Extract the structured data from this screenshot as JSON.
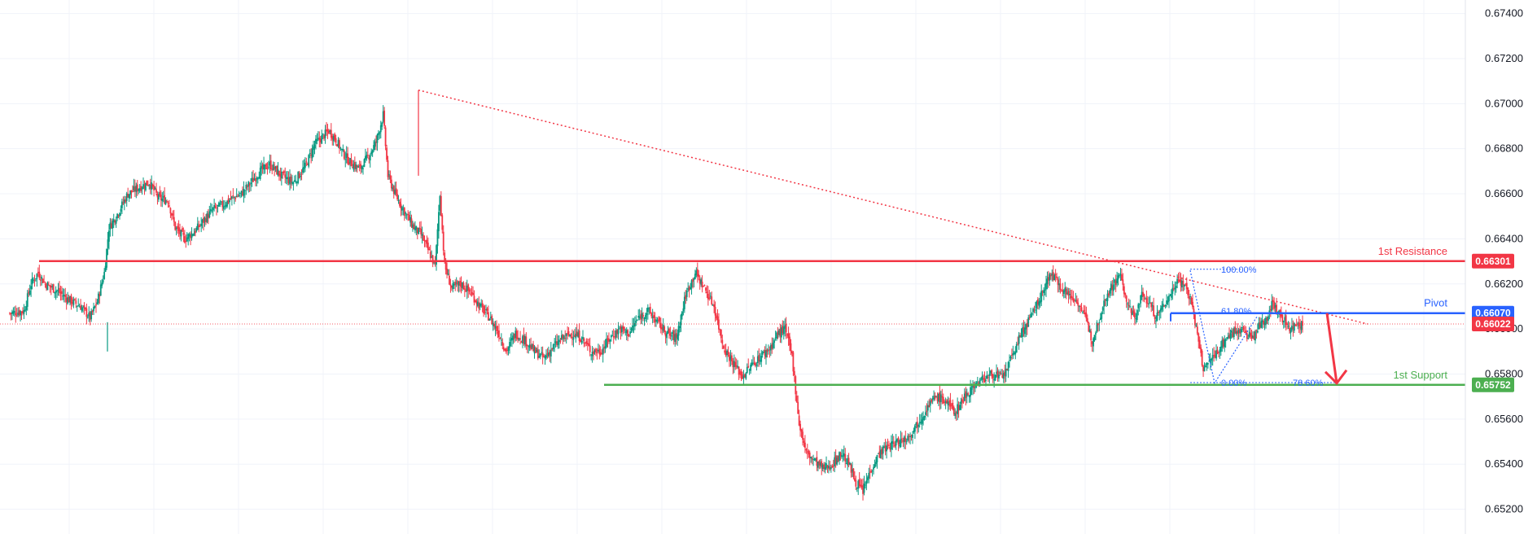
{
  "chart_data": {
    "type": "candlestick",
    "instrument_note": "",
    "y_axis": {
      "ticks": [
        "0.67400",
        "0.67200",
        "0.67000",
        "0.66800",
        "0.66600",
        "0.66400",
        "0.66200",
        "0.66000",
        "0.65800",
        "0.65600",
        "0.65400",
        "0.65200"
      ],
      "ylim": [
        0.6509,
        0.6746
      ]
    },
    "grid": true,
    "colors": {
      "up": "#089981",
      "down": "#f23645",
      "resistance": "#f23645",
      "pivot": "#2962ff",
      "support": "#4caf50",
      "trendline": "#f23645",
      "arrow": "#f23645",
      "current_price_line": "#f23645"
    },
    "levels": [
      {
        "name": "resistance",
        "label": "1st Resistance",
        "value": "0.66301",
        "price": 0.66301,
        "color": "#f23645"
      },
      {
        "name": "pivot",
        "label": "Pivot",
        "value": "0.66070",
        "price": 0.6607,
        "color": "#2962ff"
      },
      {
        "name": "current",
        "label": "",
        "value": "0.66022",
        "price": 0.66022,
        "color": "#f23645"
      },
      {
        "name": "support",
        "label": "1st Support",
        "value": "0.65752",
        "price": 0.65752,
        "color": "#4caf50"
      }
    ],
    "fibonacci": [
      {
        "label": "100.00%",
        "price": 0.66265
      },
      {
        "label": "61.80%",
        "price": 0.6608
      },
      {
        "label": "0.00%",
        "price": 0.65762
      },
      {
        "label": "78.60%",
        "price": 0.65762
      }
    ],
    "close_path": [
      [
        0,
        0.6607
      ],
      [
        12,
        0.6608
      ],
      [
        18,
        0.662
      ],
      [
        24,
        0.6625
      ],
      [
        30,
        0.662
      ],
      [
        40,
        0.6617
      ],
      [
        50,
        0.6613
      ],
      [
        60,
        0.661
      ],
      [
        68,
        0.6605
      ],
      [
        74,
        0.6612
      ],
      [
        80,
        0.6625
      ],
      [
        84,
        0.6645
      ],
      [
        90,
        0.665
      ],
      [
        100,
        0.666
      ],
      [
        110,
        0.6663
      ],
      [
        118,
        0.6665
      ],
      [
        126,
        0.6658
      ],
      [
        134,
        0.6657
      ],
      [
        140,
        0.6645
      ],
      [
        148,
        0.664
      ],
      [
        156,
        0.6643
      ],
      [
        164,
        0.6648
      ],
      [
        172,
        0.6653
      ],
      [
        180,
        0.6655
      ],
      [
        188,
        0.6658
      ],
      [
        196,
        0.666
      ],
      [
        204,
        0.6665
      ],
      [
        212,
        0.667
      ],
      [
        220,
        0.6673
      ],
      [
        230,
        0.6668
      ],
      [
        240,
        0.6665
      ],
      [
        250,
        0.6672
      ],
      [
        258,
        0.6682
      ],
      [
        264,
        0.6685
      ],
      [
        270,
        0.6688
      ],
      [
        276,
        0.6684
      ],
      [
        282,
        0.6678
      ],
      [
        288,
        0.6674
      ],
      [
        296,
        0.6671
      ],
      [
        304,
        0.6677
      ],
      [
        310,
        0.6683
      ],
      [
        316,
        0.6695
      ],
      [
        320,
        0.6668
      ],
      [
        326,
        0.666
      ],
      [
        334,
        0.6652
      ],
      [
        342,
        0.6645
      ],
      [
        348,
        0.6642
      ],
      [
        354,
        0.6635
      ],
      [
        360,
        0.6628
      ],
      [
        364,
        0.666
      ],
      [
        368,
        0.6628
      ],
      [
        374,
        0.6618
      ],
      [
        382,
        0.662
      ],
      [
        390,
        0.6616
      ],
      [
        398,
        0.661
      ],
      [
        406,
        0.6605
      ],
      [
        414,
        0.6598
      ],
      [
        420,
        0.659
      ],
      [
        428,
        0.6598
      ],
      [
        436,
        0.6595
      ],
      [
        444,
        0.659
      ],
      [
        452,
        0.6587
      ],
      [
        460,
        0.6592
      ],
      [
        468,
        0.6596
      ],
      [
        476,
        0.6598
      ],
      [
        484,
        0.6596
      ],
      [
        492,
        0.659
      ],
      [
        500,
        0.659
      ],
      [
        508,
        0.6596
      ],
      [
        516,
        0.66
      ],
      [
        524,
        0.6598
      ],
      [
        532,
        0.6605
      ],
      [
        540,
        0.6608
      ],
      [
        548,
        0.6603
      ],
      [
        556,
        0.6598
      ],
      [
        564,
        0.6596
      ],
      [
        572,
        0.6615
      ],
      [
        580,
        0.6625
      ],
      [
        588,
        0.6618
      ],
      [
        596,
        0.661
      ],
      [
        604,
        0.6592
      ],
      [
        612,
        0.6585
      ],
      [
        620,
        0.6579
      ],
      [
        628,
        0.6584
      ],
      [
        636,
        0.6588
      ],
      [
        644,
        0.6592
      ],
      [
        650,
        0.6598
      ],
      [
        656,
        0.66
      ],
      [
        662,
        0.6588
      ],
      [
        668,
        0.6558
      ],
      [
        674,
        0.6545
      ],
      [
        680,
        0.6542
      ],
      [
        688,
        0.6538
      ],
      [
        696,
        0.654
      ],
      [
        704,
        0.6545
      ],
      [
        710,
        0.654
      ],
      [
        716,
        0.6532
      ],
      [
        722,
        0.6528
      ],
      [
        728,
        0.6537
      ],
      [
        736,
        0.6545
      ],
      [
        744,
        0.6548
      ],
      [
        752,
        0.655
      ],
      [
        760,
        0.6552
      ],
      [
        768,
        0.6558
      ],
      [
        776,
        0.6565
      ],
      [
        784,
        0.657
      ],
      [
        792,
        0.6568
      ],
      [
        800,
        0.6563
      ],
      [
        808,
        0.657
      ],
      [
        816,
        0.6575
      ],
      [
        824,
        0.6578
      ],
      [
        832,
        0.658
      ],
      [
        840,
        0.6578
      ],
      [
        846,
        0.6585
      ],
      [
        852,
        0.6593
      ],
      [
        858,
        0.66
      ],
      [
        864,
        0.6605
      ],
      [
        870,
        0.6612
      ],
      [
        876,
        0.6618
      ],
      [
        880,
        0.6625
      ],
      [
        888,
        0.662
      ],
      [
        896,
        0.6615
      ],
      [
        904,
        0.6612
      ],
      [
        910,
        0.6605
      ],
      [
        916,
        0.6595
      ],
      [
        922,
        0.6605
      ],
      [
        928,
        0.6615
      ],
      [
        934,
        0.662
      ],
      [
        940,
        0.6624
      ],
      [
        946,
        0.661
      ],
      [
        952,
        0.6605
      ],
      [
        958,
        0.6615
      ],
      [
        964,
        0.6612
      ],
      [
        970,
        0.6605
      ],
      [
        976,
        0.661
      ],
      [
        982,
        0.6615
      ],
      [
        988,
        0.6622
      ],
      [
        994,
        0.662
      ],
      [
        1000,
        0.6612
      ],
      [
        1004,
        0.66
      ],
      [
        1010,
        0.6582
      ],
      [
        1016,
        0.6586
      ],
      [
        1022,
        0.659
      ],
      [
        1028,
        0.6595
      ],
      [
        1034,
        0.6598
      ],
      [
        1040,
        0.66
      ],
      [
        1046,
        0.6598
      ],
      [
        1052,
        0.6596
      ],
      [
        1058,
        0.6602
      ],
      [
        1064,
        0.6605
      ],
      [
        1068,
        0.6612
      ],
      [
        1072,
        0.6608
      ],
      [
        1078,
        0.6604
      ],
      [
        1084,
        0.66
      ],
      [
        1090,
        0.6603
      ],
      [
        1094,
        0.6601
      ]
    ]
  }
}
